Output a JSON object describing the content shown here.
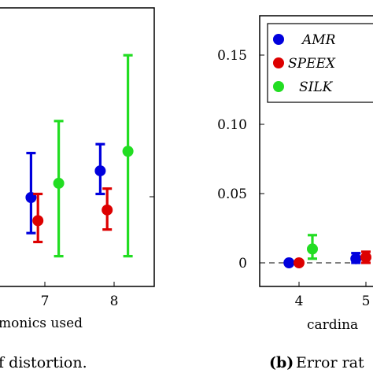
{
  "chart_data": [
    {
      "type": "scatter",
      "x_ticks": [
        "7",
        "8"
      ],
      "xlabel": "monics used",
      "caption": "f distortion.",
      "series": [
        {
          "color": "#0000dd",
          "points": [
            {
              "x": 6.8,
              "y": 0.5,
              "low": 0.3,
              "high": 0.75
            },
            {
              "x": 7.8,
              "y": 0.65,
              "low": 0.52,
              "high": 0.8
            }
          ]
        },
        {
          "color": "#dd0000",
          "points": [
            {
              "x": 6.9,
              "y": 0.37,
              "low": 0.25,
              "high": 0.52
            },
            {
              "x": 7.9,
              "y": 0.43,
              "low": 0.32,
              "high": 0.55
            }
          ]
        },
        {
          "color": "#22dd22",
          "points": [
            {
              "x": 7.2,
              "y": 0.58,
              "low": 0.17,
              "high": 0.93
            },
            {
              "x": 8.2,
              "y": 0.76,
              "low": 0.17,
              "high": 1.3
            }
          ]
        }
      ]
    },
    {
      "type": "scatter",
      "y_ticks": [
        "0",
        "0.05",
        "0.10",
        "0.15"
      ],
      "x_ticks": [
        "4",
        "5"
      ],
      "xlabel": "cardina",
      "caption_label": "(b)",
      "caption": "Error rat",
      "legend": [
        "AMR",
        "SPEEX",
        "SILK"
      ],
      "series": [
        {
          "name": "AMR",
          "color": "#0000dd",
          "points": [
            {
              "x": 3.85,
              "y": 0.0
            },
            {
              "x": 4.85,
              "y": 0.003,
              "low": 0.0,
              "high": 0.007
            }
          ]
        },
        {
          "name": "SPEEX",
          "color": "#dd0000",
          "points": [
            {
              "x": 4.0,
              "y": 0.0
            },
            {
              "x": 5.0,
              "y": 0.004,
              "low": 0.0,
              "high": 0.008
            }
          ]
        },
        {
          "name": "SILK",
          "color": "#22dd22",
          "points": [
            {
              "x": 4.2,
              "y": 0.01,
              "low": 0.003,
              "high": 0.02
            }
          ]
        }
      ]
    }
  ]
}
